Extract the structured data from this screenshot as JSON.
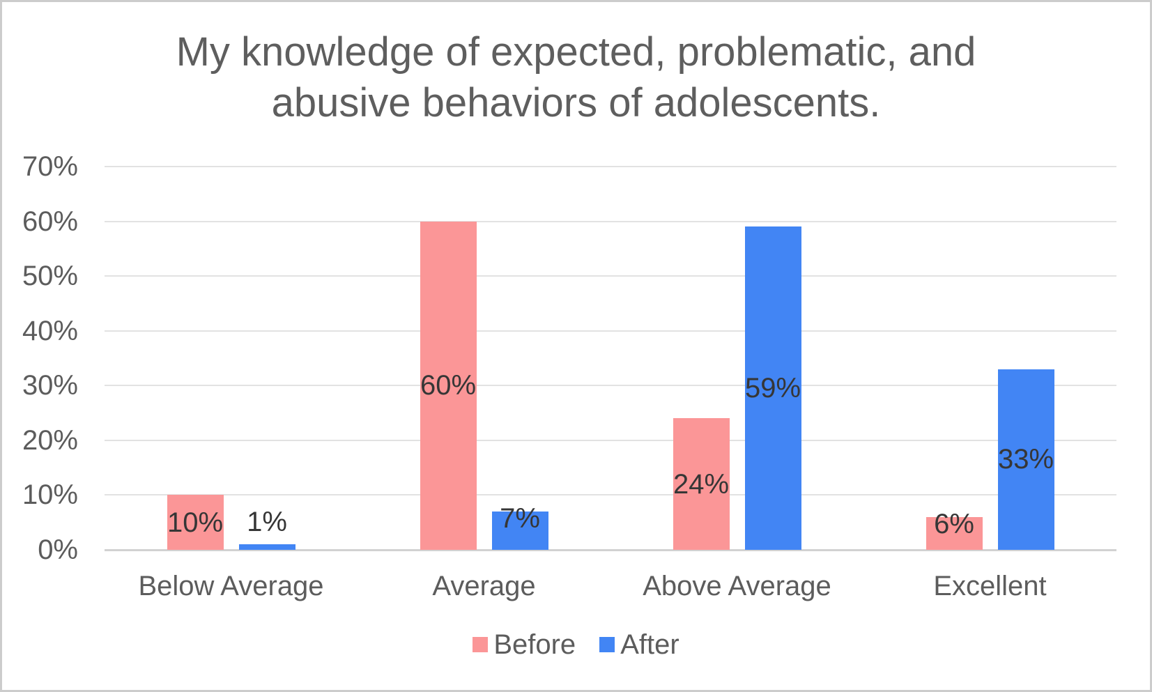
{
  "chart_data": {
    "type": "bar",
    "title": "My knowledge of expected, problematic, and abusive behaviors of adolescents.",
    "title_lines": [
      "My knowledge of expected, problematic, and",
      "abusive behaviors of adolescents."
    ],
    "categories": [
      "Below Average",
      "Average",
      "Above Average",
      "Excellent"
    ],
    "series": [
      {
        "name": "Before",
        "color": "#FB9697",
        "values": [
          10,
          60,
          24,
          6
        ],
        "data_labels": [
          "10%",
          "60%",
          "24%",
          "6%"
        ]
      },
      {
        "name": "After",
        "color": "#4285F4",
        "values": [
          1,
          7,
          59,
          33
        ],
        "data_labels": [
          "1%",
          "7%",
          "59%",
          "33%"
        ]
      }
    ],
    "xlabel": "",
    "ylabel": "",
    "ylim": [
      0,
      70
    ],
    "ytick_step": 10,
    "ytick_labels": [
      "0%",
      "10%",
      "20%",
      "30%",
      "40%",
      "50%",
      "60%",
      "70%"
    ],
    "grid": true,
    "legend_position": "bottom",
    "legend_entries": [
      "Before",
      "After"
    ]
  },
  "colors": {
    "before_series": "#FB9697",
    "after_series": "#4285F4",
    "title_text": "#5E5E5E",
    "axis_text": "#5C5C5C",
    "data_label_text": "#363636",
    "gridline": "#E2E2E2",
    "baseline": "#D2D2D2",
    "background": "#FFFFFF",
    "frame_border": "#CCCCCC"
  }
}
